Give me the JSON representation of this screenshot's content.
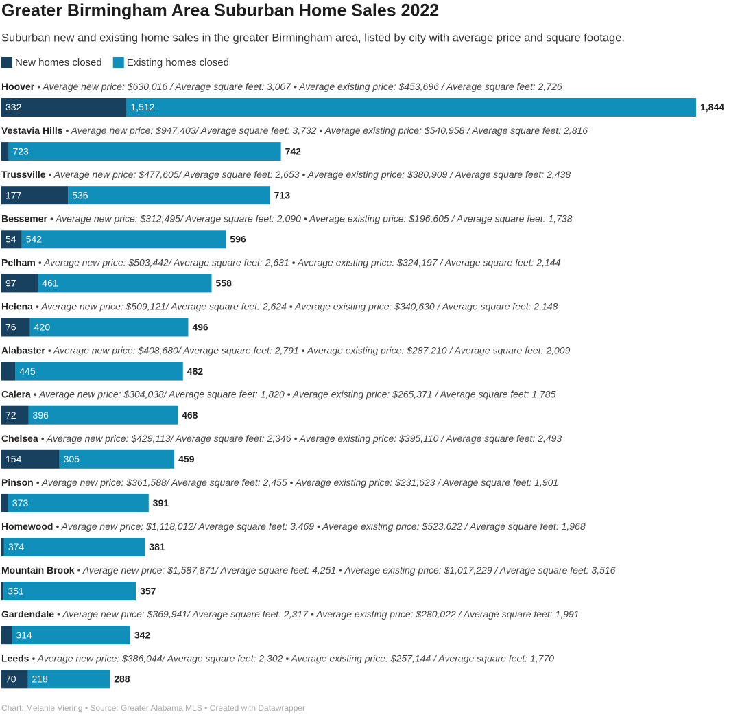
{
  "chart_data": {
    "type": "stacked-bar",
    "title": "Greater Birmingham Area Suburban Home Sales 2022",
    "subtitle": "Suburban new and existing home sales in the greater Birmingham area, listed by city with average price and square footage.",
    "categories": [
      "Hoover",
      "Vestavia Hills",
      "Trussville",
      "Bessemer",
      "Pelham",
      "Helena",
      "Alabaster",
      "Calera",
      "Chelsea",
      "Pinson",
      "Homewood",
      "Mountain Brook",
      "Gardendale",
      "Leeds"
    ],
    "descriptions": [
      "• Average new price: $630,016 / Average square feet: 3,007 • Average existing price: $453,696 / Average square feet: 2,726",
      "• Average new price: $947,403/ Average square feet: 3,732 • Average existing price: $540,958 / Average square feet: 2,816",
      "• Average new price: $477,605/ Average square feet: 2,653 • Average existing price: $380,909 / Average square feet: 2,438",
      "• Average new price: $312,495/ Average square feet: 2,090 • Average existing price: $196,605 / Average square feet: 1,738",
      "• Average new price: $503,442/ Average square feet: 2,631 • Average existing price: $324,197 / Average square feet: 2,144",
      "• Average new price: $509,121/ Average square feet: 2,624 • Average existing price: $340,630 / Average square feet: 2,148",
      "• Average new price: $408,680/ Average square feet: 2,791 • Average existing price: $287,210 / Average square feet: 2,009",
      "• Average new price: $304,038/ Average square feet: 1,820 • Average existing price: $265,371 / Average square feet: 1,785",
      "• Average new price: $429,113/ Average square feet: 2,346 • Average existing price: $395,110 / Average square feet: 2,493",
      "• Average new price: $361,588/ Average square feet: 2,455 • Average existing price: $231,623 / Average square feet: 1,901",
      "• Average new price: $1,118,012/ Average square feet: 3,469 • Average existing price: $523,622 / Average square feet: 1,968",
      "• Average new price: $1,587,871/ Average square feet: 4,251 • Average existing price: $1,017,229 / Average square feet: 3,516",
      "• Average new price: $369,941/ Average square feet: 2,317 • Average existing price: $280,022 / Average square feet: 1,991",
      "• Average new price: $386,044/ Average square feet: 2,302 • Average existing price: $257,144 / Average square feet: 1,770"
    ],
    "series": [
      {
        "name": "New homes closed",
        "color": "#17415e",
        "values": [
          332,
          19,
          177,
          54,
          97,
          76,
          37,
          72,
          154,
          18,
          7,
          6,
          28,
          70
        ],
        "value_labels": [
          "332",
          null,
          "177",
          "54",
          "97",
          "76",
          null,
          "72",
          "154",
          null,
          null,
          null,
          null,
          "70"
        ]
      },
      {
        "name": "Existing homes closed",
        "color": "#0f8fba",
        "values": [
          1512,
          723,
          536,
          542,
          461,
          420,
          445,
          396,
          305,
          373,
          374,
          351,
          314,
          218
        ],
        "value_labels": [
          "1,512",
          "723",
          "536",
          "542",
          "461",
          "420",
          "445",
          "396",
          "305",
          "373",
          "374",
          "351",
          "314",
          "218"
        ]
      }
    ],
    "totals": {
      "values": [
        1844,
        742,
        713,
        596,
        558,
        496,
        482,
        468,
        459,
        391,
        381,
        357,
        342,
        288
      ],
      "value_labels": [
        "1,844",
        "742",
        "713",
        "596",
        "558",
        "496",
        "482",
        "468",
        "459",
        "391",
        "381",
        "357",
        "342",
        "288"
      ]
    },
    "source": "Chart: Melanie Viering • Source: Greater Alabama MLS • Created with Datawrapper"
  }
}
